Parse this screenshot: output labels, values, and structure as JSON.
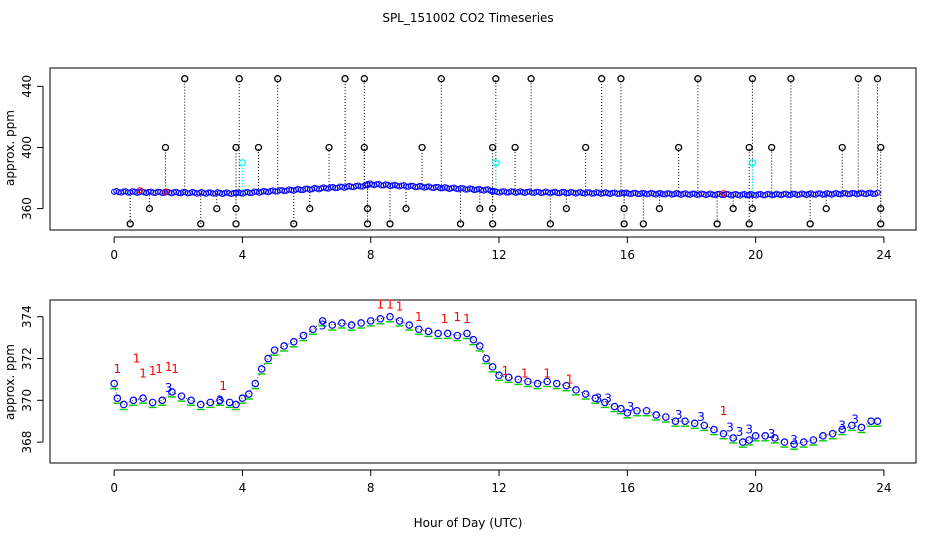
{
  "figure": {
    "title": "SPL_151002  CO2 Timeseries",
    "xlabel": "Hour of Day (UTC)"
  },
  "colors": {
    "measured": "#0000ff",
    "standard": "#00ffff",
    "spike": "#000000",
    "flag1": "#ff0000",
    "flag2": "#00cc00"
  },
  "chart_data": [
    {
      "type": "scatter",
      "panel": "top",
      "ylabel": "approx. ppm",
      "xlim": [
        -2,
        25
      ],
      "ylim": [
        346,
        452
      ],
      "xticks": [
        0,
        4,
        8,
        12,
        16,
        20,
        24
      ],
      "yticks": [
        360,
        400,
        440
      ],
      "baseline_segments": [
        {
          "x": [
            0.0,
            3.8
          ],
          "y": [
            371,
            370
          ]
        },
        {
          "x": [
            3.8,
            7.9
          ],
          "y": [
            370,
            375
          ]
        },
        {
          "x": [
            7.9,
            11.8
          ],
          "y": [
            376,
            372
          ]
        },
        {
          "x": [
            11.8,
            15.9
          ],
          "y": [
            371,
            370
          ]
        },
        {
          "x": [
            15.9,
            19.8
          ],
          "y": [
            370,
            369
          ]
        },
        {
          "x": [
            19.8,
            23.8
          ],
          "y": [
            369,
            370
          ]
        }
      ],
      "high_spikes": [
        {
          "x": 2.2,
          "y": 445
        },
        {
          "x": 3.9,
          "y": 445
        },
        {
          "x": 5.1,
          "y": 445
        },
        {
          "x": 7.2,
          "y": 445
        },
        {
          "x": 7.8,
          "y": 445
        },
        {
          "x": 10.2,
          "y": 445
        },
        {
          "x": 11.9,
          "y": 445
        },
        {
          "x": 13.0,
          "y": 445
        },
        {
          "x": 15.2,
          "y": 445
        },
        {
          "x": 15.8,
          "y": 445
        },
        {
          "x": 18.2,
          "y": 445
        },
        {
          "x": 19.9,
          "y": 445
        },
        {
          "x": 21.1,
          "y": 445
        },
        {
          "x": 23.2,
          "y": 445
        },
        {
          "x": 23.8,
          "y": 445
        },
        {
          "x": 1.6,
          "y": 400
        },
        {
          "x": 3.8,
          "y": 400
        },
        {
          "x": 4.5,
          "y": 400
        },
        {
          "x": 6.7,
          "y": 400
        },
        {
          "x": 7.8,
          "y": 400
        },
        {
          "x": 9.6,
          "y": 400
        },
        {
          "x": 11.8,
          "y": 400
        },
        {
          "x": 12.5,
          "y": 400
        },
        {
          "x": 14.7,
          "y": 400
        },
        {
          "x": 17.6,
          "y": 400
        },
        {
          "x": 19.8,
          "y": 400
        },
        {
          "x": 20.5,
          "y": 400
        },
        {
          "x": 22.7,
          "y": 400
        },
        {
          "x": 23.9,
          "y": 400
        }
      ],
      "low_spikes": [
        {
          "x": 0.5,
          "y": 350
        },
        {
          "x": 1.1,
          "y": 360
        },
        {
          "x": 2.7,
          "y": 350
        },
        {
          "x": 3.2,
          "y": 360
        },
        {
          "x": 3.8,
          "y": 350
        },
        {
          "x": 3.8,
          "y": 360
        },
        {
          "x": 5.6,
          "y": 350
        },
        {
          "x": 6.1,
          "y": 360
        },
        {
          "x": 7.9,
          "y": 350
        },
        {
          "x": 7.9,
          "y": 360
        },
        {
          "x": 8.6,
          "y": 350
        },
        {
          "x": 9.1,
          "y": 360
        },
        {
          "x": 10.8,
          "y": 350
        },
        {
          "x": 11.4,
          "y": 360
        },
        {
          "x": 11.8,
          "y": 350
        },
        {
          "x": 11.8,
          "y": 360
        },
        {
          "x": 13.6,
          "y": 350
        },
        {
          "x": 14.1,
          "y": 360
        },
        {
          "x": 15.9,
          "y": 350
        },
        {
          "x": 15.9,
          "y": 360
        },
        {
          "x": 16.5,
          "y": 350
        },
        {
          "x": 17.0,
          "y": 360
        },
        {
          "x": 18.8,
          "y": 350
        },
        {
          "x": 19.3,
          "y": 360
        },
        {
          "x": 19.8,
          "y": 350
        },
        {
          "x": 19.9,
          "y": 360
        },
        {
          "x": 21.7,
          "y": 350
        },
        {
          "x": 22.2,
          "y": 360
        },
        {
          "x": 23.9,
          "y": 350
        },
        {
          "x": 23.9,
          "y": 360
        }
      ],
      "standard_points": [
        {
          "x": 4.0,
          "y": 390
        },
        {
          "x": 11.9,
          "y": 390
        },
        {
          "x": 19.9,
          "y": 390
        }
      ],
      "red_points": [
        {
          "x": 0.8,
          "y": 372
        },
        {
          "x": 1.6,
          "y": 371
        },
        {
          "x": 19.0,
          "y": 370
        }
      ]
    },
    {
      "type": "scatter",
      "panel": "bottom",
      "ylabel": "approx. ppm",
      "xlim": [
        -2,
        25
      ],
      "ylim": [
        367.0,
        374.8
      ],
      "xticks": [
        0,
        4,
        8,
        12,
        16,
        20,
        24
      ],
      "yticks": [
        368,
        370,
        372,
        374
      ],
      "series": [
        {
          "name": "CO2",
          "x": [
            0.0,
            0.1,
            0.3,
            0.6,
            0.9,
            1.2,
            1.5,
            1.8,
            2.1,
            2.4,
            2.7,
            3.0,
            3.3,
            3.6,
            3.8,
            4.0,
            4.2,
            4.4,
            4.6,
            4.8,
            5.0,
            5.3,
            5.6,
            5.9,
            6.2,
            6.5,
            6.8,
            7.1,
            7.4,
            7.7,
            8.0,
            8.3,
            8.6,
            8.9,
            9.2,
            9.5,
            9.8,
            10.1,
            10.4,
            10.7,
            11.0,
            11.2,
            11.4,
            11.6,
            11.8,
            12.0,
            12.3,
            12.6,
            12.9,
            13.2,
            13.5,
            13.8,
            14.1,
            14.4,
            14.7,
            15.0,
            15.3,
            15.6,
            15.8,
            16.0,
            16.3,
            16.6,
            16.9,
            17.2,
            17.5,
            17.8,
            18.1,
            18.4,
            18.7,
            19.0,
            19.3,
            19.6,
            19.8,
            20.0,
            20.3,
            20.6,
            20.9,
            21.2,
            21.5,
            21.8,
            22.1,
            22.4,
            22.7,
            23.0,
            23.3,
            23.6,
            23.8
          ],
          "y": [
            370.8,
            370.1,
            369.8,
            370.0,
            370.1,
            369.9,
            370.0,
            370.4,
            370.2,
            370.0,
            369.8,
            369.9,
            370.0,
            369.9,
            369.8,
            370.1,
            370.3,
            370.8,
            371.5,
            372.0,
            372.4,
            372.6,
            372.8,
            373.1,
            373.4,
            373.8,
            373.6,
            373.7,
            373.6,
            373.7,
            373.8,
            373.9,
            374.0,
            373.8,
            373.6,
            373.4,
            373.3,
            373.2,
            373.2,
            373.1,
            373.2,
            372.9,
            372.6,
            372.0,
            371.6,
            371.2,
            371.1,
            371.0,
            370.9,
            370.8,
            370.9,
            370.8,
            370.7,
            370.5,
            370.3,
            370.1,
            369.9,
            369.7,
            369.6,
            369.4,
            369.5,
            369.5,
            369.3,
            369.2,
            369.0,
            369.0,
            368.9,
            368.8,
            368.6,
            368.4,
            368.2,
            368.0,
            368.1,
            368.3,
            368.3,
            368.2,
            368.0,
            367.9,
            368.0,
            368.1,
            368.3,
            368.4,
            368.6,
            368.8,
            368.7,
            369.0,
            369.0
          ]
        },
        {
          "name": "flag 1",
          "x": [
            0.1,
            0.7,
            0.9,
            1.2,
            1.4,
            1.7,
            1.9,
            3.4,
            8.3,
            8.6,
            8.9,
            9.5,
            10.3,
            10.7,
            11.0,
            12.2,
            12.8,
            13.5,
            14.2,
            19.0
          ],
          "y": [
            371.3,
            371.8,
            371.1,
            371.2,
            371.3,
            371.4,
            371.3,
            370.5,
            374.4,
            374.4,
            374.3,
            373.8,
            373.7,
            373.8,
            373.7,
            371.2,
            371.1,
            371.1,
            370.8,
            369.3
          ]
        },
        {
          "name": "flag 3",
          "x": [
            1.7,
            3.3,
            6.5,
            15.1,
            15.4,
            16.1,
            17.6,
            18.3,
            19.2,
            19.5,
            19.8,
            20.5,
            21.2,
            22.7,
            23.1
          ],
          "y": [
            370.4,
            369.8,
            373.4,
            369.9,
            369.9,
            369.5,
            369.1,
            369.0,
            368.5,
            368.3,
            368.4,
            368.2,
            367.9,
            368.6,
            368.9
          ]
        }
      ]
    }
  ]
}
